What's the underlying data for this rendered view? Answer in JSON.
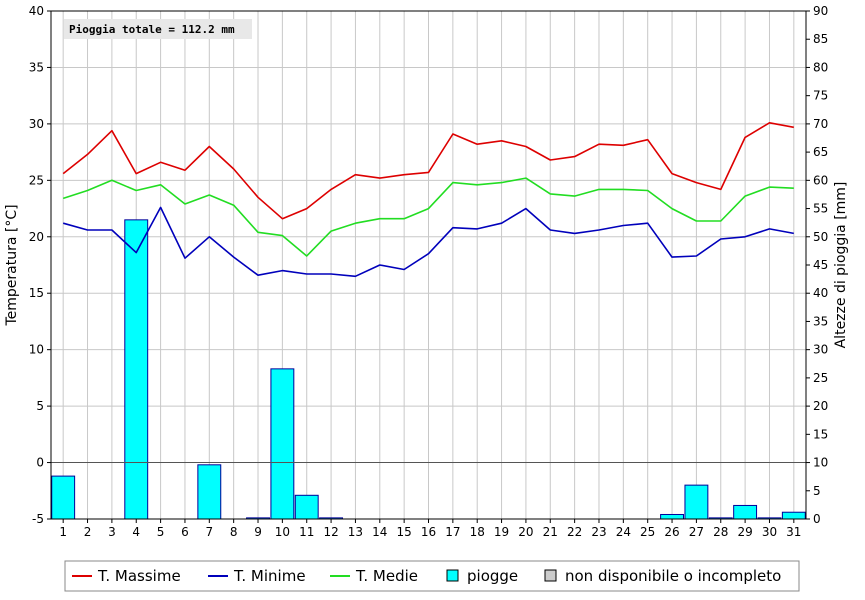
{
  "chart_data": {
    "type": "bar+line",
    "annotation": "Pioggia totale = 112.2 mm",
    "ylabel_left": "Temperatura [°C]",
    "ylabel_right": "Altezze di pioggia [mm]",
    "ylim_left": [
      -5,
      40
    ],
    "ylim_right": [
      0,
      90
    ],
    "x": [
      1,
      2,
      3,
      4,
      5,
      6,
      7,
      8,
      9,
      10,
      11,
      12,
      13,
      14,
      15,
      16,
      17,
      18,
      19,
      20,
      21,
      22,
      23,
      24,
      25,
      26,
      27,
      28,
      29,
      30,
      31
    ],
    "x_tick_labels": [
      "1",
      "2",
      "3",
      "4",
      "5",
      "6",
      "7",
      "8",
      "9",
      "10",
      "11",
      "12",
      "13",
      "14",
      "15",
      "16",
      "17",
      "18",
      "19",
      "20",
      "21",
      "22",
      "23",
      "24",
      "25",
      "26",
      "27",
      "28",
      "29",
      "30",
      "31"
    ],
    "y_left_tick_labels": [
      "-5",
      "0",
      "5",
      "10",
      "15",
      "20",
      "25",
      "30",
      "35",
      "40"
    ],
    "y_right_tick_labels": [
      "0",
      "5",
      "10",
      "15",
      "20",
      "25",
      "30",
      "35",
      "40",
      "45",
      "50",
      "55",
      "60",
      "65",
      "70",
      "75",
      "80",
      "85",
      "90"
    ],
    "grid": true,
    "legend_position": "bottom",
    "series": [
      {
        "name": "T. Massime",
        "color": "#dd0000",
        "axis": "left",
        "kind": "line",
        "values": [
          25.6,
          27.3,
          29.4,
          25.6,
          26.6,
          25.9,
          28.0,
          26.0,
          23.5,
          21.6,
          22.5,
          24.2,
          25.5,
          25.2,
          25.5,
          25.7,
          29.1,
          28.2,
          28.5,
          28.0,
          26.8,
          27.1,
          28.2,
          28.1,
          28.6,
          25.6,
          24.8,
          24.2,
          28.8,
          30.1,
          29.7
        ]
      },
      {
        "name": "T. Minime",
        "color": "#0000bb",
        "axis": "left",
        "kind": "line",
        "values": [
          21.2,
          20.6,
          20.6,
          18.6,
          22.6,
          18.1,
          20.0,
          18.2,
          16.6,
          17.0,
          16.7,
          16.7,
          16.5,
          17.5,
          17.1,
          18.5,
          20.8,
          20.7,
          21.2,
          22.5,
          20.6,
          20.3,
          20.6,
          21.0,
          21.2,
          18.2,
          18.3,
          19.8,
          20.0,
          20.7,
          20.3
        ]
      },
      {
        "name": "T. Medie",
        "color": "#22dd22",
        "axis": "left",
        "kind": "line",
        "values": [
          23.4,
          24.1,
          25.0,
          24.1,
          24.6,
          22.9,
          23.7,
          22.8,
          20.4,
          20.1,
          18.3,
          20.5,
          21.2,
          21.6,
          21.6,
          22.5,
          24.8,
          24.6,
          24.8,
          25.2,
          23.8,
          23.6,
          24.2,
          24.2,
          24.1,
          22.5,
          21.4,
          21.4,
          23.6,
          24.4,
          24.3
        ]
      },
      {
        "name": "piogge",
        "color": "#00ffff",
        "edge": "#000099",
        "axis": "right",
        "kind": "bar",
        "values": [
          7.6,
          0,
          0,
          53.0,
          0,
          0,
          9.6,
          0,
          0.2,
          26.6,
          4.2,
          0.2,
          0,
          0,
          0,
          0,
          0,
          0,
          0,
          0,
          0,
          0,
          0,
          0,
          0,
          0.8,
          6.0,
          0.2,
          2.4,
          0.2,
          1.2
        ]
      }
    ],
    "legend": [
      {
        "label": "T. Massime",
        "kind": "line",
        "color": "#dd0000"
      },
      {
        "label": "T. Minime",
        "kind": "line",
        "color": "#0000bb"
      },
      {
        "label": "T. Medie",
        "kind": "line",
        "color": "#22dd22"
      },
      {
        "label": "piogge",
        "kind": "box",
        "color": "#00ffff"
      },
      {
        "label": "non disponibile o incompleto",
        "kind": "box",
        "color": "#cccccc"
      }
    ]
  }
}
